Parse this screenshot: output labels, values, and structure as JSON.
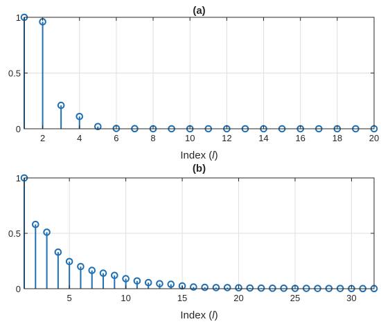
{
  "chart_data": [
    {
      "type": "stem",
      "title": "(a)",
      "xlabel_prefix": "Index (",
      "xlabel_var": "l",
      "xlabel_suffix": ")",
      "ylabel": "",
      "xlim": [
        1,
        20
      ],
      "ylim": [
        0,
        1
      ],
      "xticks": [
        2,
        4,
        6,
        8,
        10,
        12,
        14,
        16,
        18,
        20
      ],
      "yticks": [
        0,
        0.5,
        1
      ],
      "ytick_labels": [
        "0",
        "0.5",
        "1"
      ],
      "grid": true,
      "color": "#1f6fb4",
      "x": [
        1,
        2,
        3,
        4,
        5,
        6,
        7,
        8,
        9,
        10,
        11,
        12,
        13,
        14,
        15,
        16,
        17,
        18,
        19,
        20
      ],
      "values": [
        1.0,
        0.96,
        0.21,
        0.11,
        0.02,
        0.003,
        0.001,
        0,
        0,
        0,
        0,
        0,
        0,
        0,
        0,
        0,
        0,
        0,
        0,
        0
      ]
    },
    {
      "type": "stem",
      "title": "(b)",
      "xlabel_prefix": "Index (",
      "xlabel_var": "l",
      "xlabel_suffix": ")",
      "ylabel": "",
      "xlim": [
        1,
        32
      ],
      "ylim": [
        0,
        1
      ],
      "xticks": [
        5,
        10,
        15,
        20,
        25,
        30
      ],
      "yticks": [
        0,
        0.5,
        1
      ],
      "ytick_labels": [
        "0",
        "0.5",
        "1"
      ],
      "grid": true,
      "color": "#1f6fb4",
      "x": [
        1,
        2,
        3,
        4,
        5,
        6,
        7,
        8,
        9,
        10,
        11,
        12,
        13,
        14,
        15,
        16,
        17,
        18,
        19,
        20,
        21,
        22,
        23,
        24,
        25,
        26,
        27,
        28,
        29,
        30,
        31,
        32
      ],
      "values": [
        1.0,
        0.58,
        0.51,
        0.33,
        0.245,
        0.2,
        0.165,
        0.14,
        0.12,
        0.09,
        0.07,
        0.055,
        0.045,
        0.04,
        0.025,
        0.015,
        0.012,
        0.01,
        0.01,
        0.008,
        0.006,
        0.005,
        0.004,
        0.004,
        0.003,
        0.003,
        0.002,
        0.002,
        0.002,
        0.001,
        0.001,
        0.001
      ]
    }
  ]
}
